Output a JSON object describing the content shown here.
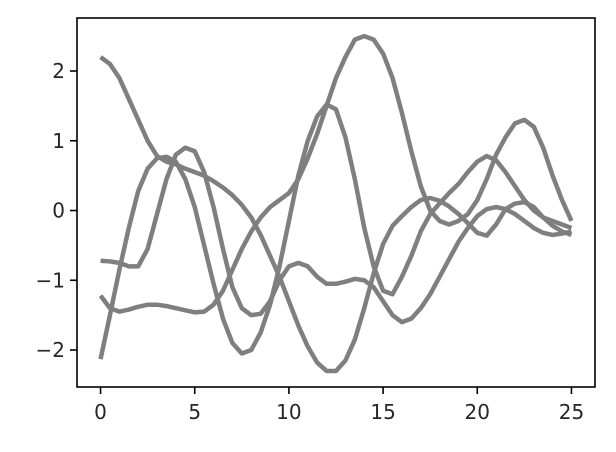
{
  "chart_data": {
    "type": "line",
    "title": "",
    "xlabel": "",
    "ylabel": "",
    "xlim": [
      -1.25,
      26.25
    ],
    "ylim": [
      -2.53,
      2.76
    ],
    "xticks": [
      0,
      5,
      10,
      15,
      20,
      25
    ],
    "xtick_labels": [
      "0",
      "5",
      "10",
      "15",
      "20",
      "25"
    ],
    "yticks": [
      -2,
      -1,
      0,
      1,
      2
    ],
    "ytick_labels": [
      "−2",
      "−1",
      "0",
      "1",
      "2"
    ],
    "grid": false,
    "legend": "none",
    "line_color": "#7f7f7f",
    "x": [
      0,
      0.5,
      1,
      1.5,
      2,
      2.5,
      3,
      3.5,
      4,
      4.5,
      5,
      5.5,
      6,
      6.5,
      7,
      7.5,
      8,
      8.5,
      9,
      9.5,
      10,
      10.5,
      11,
      11.5,
      12,
      12.5,
      13,
      13.5,
      14,
      14.5,
      15,
      15.5,
      16,
      16.5,
      17,
      17.5,
      18,
      18.5,
      19,
      19.5,
      20,
      20.5,
      21,
      21.5,
      22,
      22.5,
      23,
      23.5,
      24,
      24.5,
      25
    ],
    "series": [
      {
        "values": [
          2.2,
          2.1,
          1.9,
          1.6,
          1.3,
          1.0,
          0.78,
          0.7,
          0.66,
          0.6,
          0.55,
          0.5,
          0.42,
          0.33,
          0.22,
          0.08,
          -0.1,
          -0.35,
          -0.65,
          -0.95,
          -1.3,
          -1.65,
          -1.95,
          -2.18,
          -2.3,
          -2.3,
          -2.15,
          -1.85,
          -1.4,
          -0.9,
          -0.48,
          -0.22,
          -0.08,
          0.05,
          0.15,
          0.18,
          0.14,
          0.06,
          -0.05,
          -0.18,
          -0.32,
          -0.36,
          -0.2,
          0.02,
          0.1,
          0.12,
          0.05,
          -0.1,
          -0.22,
          -0.3,
          -0.35
        ]
      },
      {
        "values": [
          -2.13,
          -1.5,
          -0.85,
          -0.25,
          0.28,
          0.6,
          0.75,
          0.77,
          0.7,
          0.45,
          0.05,
          -0.5,
          -1.05,
          -1.55,
          -1.9,
          -2.05,
          -2.0,
          -1.75,
          -1.35,
          -0.8,
          -0.15,
          0.5,
          1.0,
          1.35,
          1.52,
          1.45,
          1.05,
          0.45,
          -0.25,
          -0.8,
          -1.15,
          -1.2,
          -0.95,
          -0.65,
          -0.3,
          -0.05,
          0.1,
          0.25,
          0.38,
          0.55,
          0.7,
          0.78,
          0.72,
          0.55,
          0.35,
          0.15,
          0.0,
          -0.1,
          -0.15,
          -0.2,
          -0.25
        ]
      },
      {
        "values": [
          -0.72,
          -0.73,
          -0.75,
          -0.8,
          -0.8,
          -0.55,
          -0.05,
          0.45,
          0.8,
          0.9,
          0.85,
          0.55,
          0.05,
          -0.55,
          -1.1,
          -1.4,
          -1.5,
          -1.48,
          -1.3,
          -1.0,
          -0.8,
          -0.75,
          -0.8,
          -0.95,
          -1.05,
          -1.05,
          -1.02,
          -0.98,
          -1.0,
          -1.1,
          -1.3,
          -1.5,
          -1.6,
          -1.55,
          -1.4,
          -1.2,
          -0.95,
          -0.7,
          -0.45,
          -0.25,
          -0.08,
          0.02,
          0.05,
          0.02,
          -0.05,
          -0.15,
          -0.25,
          -0.32,
          -0.35,
          -0.33,
          -0.3
        ]
      },
      {
        "values": [
          -1.22,
          -1.4,
          -1.45,
          -1.42,
          -1.38,
          -1.35,
          -1.35,
          -1.37,
          -1.4,
          -1.43,
          -1.46,
          -1.45,
          -1.35,
          -1.15,
          -0.85,
          -0.55,
          -0.3,
          -0.1,
          0.05,
          0.15,
          0.25,
          0.45,
          0.75,
          1.1,
          1.5,
          1.9,
          2.2,
          2.45,
          2.5,
          2.45,
          2.25,
          1.9,
          1.4,
          0.85,
          0.35,
          0.0,
          -0.15,
          -0.2,
          -0.15,
          -0.05,
          0.15,
          0.45,
          0.8,
          1.05,
          1.25,
          1.3,
          1.2,
          0.9,
          0.5,
          0.15,
          -0.15
        ]
      }
    ]
  }
}
